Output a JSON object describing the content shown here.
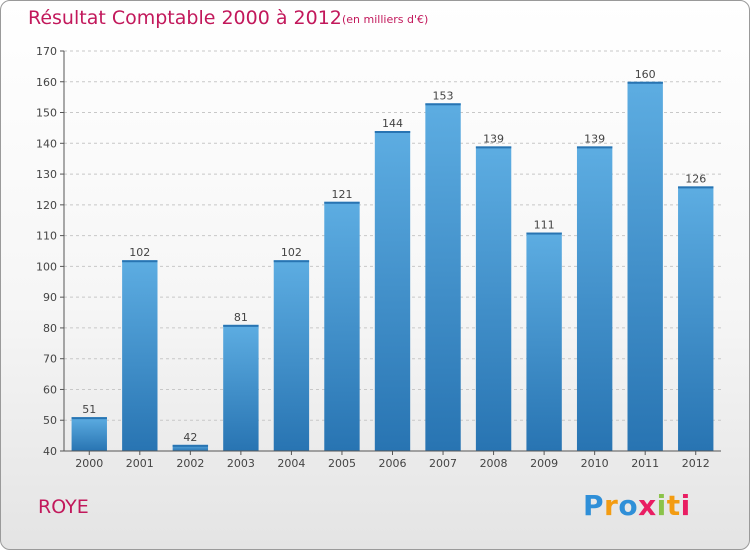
{
  "header": {
    "title": "Résultat Comptable 2000 à 2012",
    "subtitle": "(en milliers d'€)"
  },
  "footer": {
    "town": "ROYE",
    "brand_letters": [
      "P",
      "r",
      "o",
      "x",
      "i",
      "t",
      "i"
    ],
    "brand_colors": [
      "#2f8fd8",
      "#f39c12",
      "#2f8fd8",
      "#e91e63",
      "#8bc34a",
      "#f39c12",
      "#e91e63"
    ]
  },
  "colors": {
    "accent": "#c2185b",
    "bar_light": "#5dade2",
    "bar_dark": "#2874b2"
  },
  "chart_data": {
    "type": "bar",
    "title": "Résultat Comptable 2000 à 2012",
    "subtitle": "(en milliers d'€)",
    "categories": [
      "2000",
      "2001",
      "2002",
      "2003",
      "2004",
      "2005",
      "2006",
      "2007",
      "2008",
      "2009",
      "2010",
      "2011",
      "2012"
    ],
    "values": [
      51,
      102,
      42,
      81,
      102,
      121,
      144,
      153,
      139,
      111,
      139,
      160,
      126
    ],
    "ylim": [
      40,
      170
    ],
    "yticks": [
      40,
      50,
      60,
      70,
      80,
      90,
      100,
      110,
      120,
      130,
      140,
      150,
      160,
      170
    ],
    "xlabel": "",
    "ylabel": "",
    "grid": "horizontal-dashed"
  }
}
